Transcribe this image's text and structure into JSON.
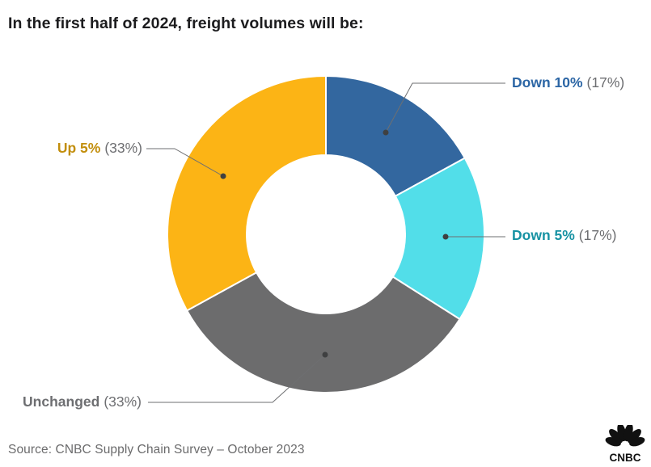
{
  "page": {
    "title": "In the first half of 2024, freight volumes will be:",
    "source": "Source: CNBC Supply Chain Survey – October 2023",
    "logo_text": "CNBC",
    "background": "#FFFFFF"
  },
  "chart_data": {
    "type": "pie",
    "subtype": "donut",
    "title": "In the first half of 2024, freight volumes will be:",
    "categories": [
      "Down 10%",
      "Down 5%",
      "Unchanged",
      "Up 5%"
    ],
    "values": [
      17,
      17,
      33,
      33
    ],
    "unit": "percent",
    "start_angle_deg": 0,
    "direction": "clockwise",
    "inner_radius_ratio": 0.5,
    "slice_colors": [
      "#33679F",
      "#52DEE9",
      "#6C6C6D",
      "#FCB415"
    ],
    "label_colors": [
      "#2C66A5",
      "#1792A3",
      "#6D6E71",
      "#C28E0C"
    ],
    "leader_line_color": "#6E6F71",
    "leader_dot_color": "#3F4041",
    "legend_position": "callout-labels"
  },
  "labels": [
    {
      "name": "Down 10%",
      "pct": "(17%)"
    },
    {
      "name": "Down 5%",
      "pct": "(17%)"
    },
    {
      "name": "Unchanged",
      "pct": "(33%)"
    },
    {
      "name": "Up 5%",
      "pct": "(33%)"
    }
  ]
}
